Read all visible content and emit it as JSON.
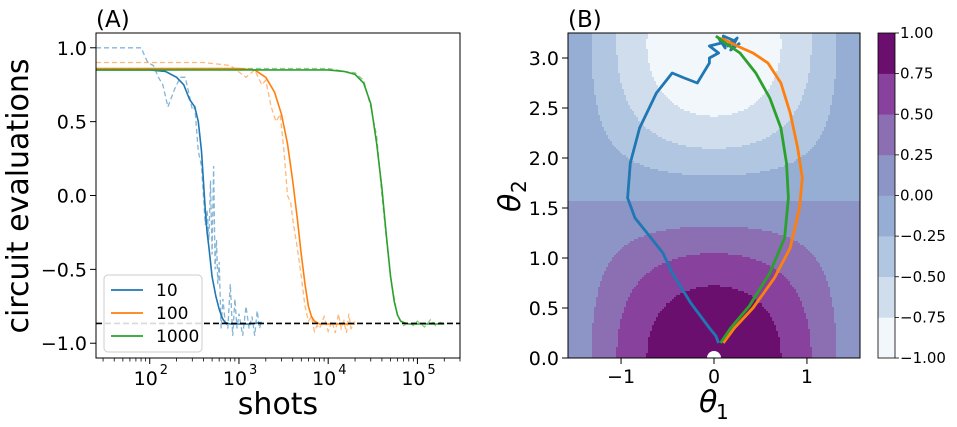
{
  "figure": {
    "panel_a_label": "(A)",
    "panel_b_label": "(B)"
  },
  "chart_data": [
    {
      "type": "line",
      "panel": "(A)",
      "xlabel": "shots",
      "ylabel": "circuit evaluations",
      "xscale": "log",
      "xlim": [
        25,
        300000
      ],
      "ylim": [
        -1.1,
        1.1
      ],
      "xticks": [
        100,
        1000,
        10000,
        100000
      ],
      "xtick_labels": [
        "10",
        "10",
        "10",
        "10"
      ],
      "xtick_exponents": [
        "2",
        "3",
        "4",
        "5"
      ],
      "yticks": [
        -1.0,
        -0.5,
        0.0,
        0.5,
        1.0
      ],
      "ytick_labels": [
        "−1.0",
        "−0.5",
        "0.0",
        "0.5",
        "1.0"
      ],
      "reference_line": {
        "y": -0.866,
        "style": "dashed",
        "color": "#000000"
      },
      "legend": {
        "position": "lower-left"
      },
      "series": [
        {
          "name": "10",
          "color": "#1f77b4",
          "x": [
            25,
            60,
            100,
            150,
            200,
            240,
            280,
            320,
            350,
            380,
            400,
            420,
            440,
            460,
            480,
            500,
            550,
            600,
            650,
            700,
            800,
            1000,
            1300,
            1800
          ],
          "y": [
            0.85,
            0.85,
            0.85,
            0.84,
            0.8,
            0.75,
            0.65,
            0.6,
            0.5,
            0.3,
            0.1,
            -0.1,
            -0.25,
            -0.35,
            -0.45,
            -0.55,
            -0.68,
            -0.77,
            -0.83,
            -0.86,
            -0.87,
            -0.87,
            -0.87,
            -0.86
          ],
          "noisy_x": [
            25,
            60,
            80,
            95,
            110,
            125,
            140,
            160,
            190,
            220,
            250,
            280,
            300,
            320,
            350,
            380,
            400,
            420,
            440,
            460,
            480,
            500,
            520,
            540,
            560,
            580,
            600,
            630,
            660,
            700,
            750,
            800,
            850,
            900,
            950,
            1000,
            1100,
            1200,
            1300,
            1400,
            1500,
            1600,
            1700,
            1800
          ],
          "noisy_y": [
            1.0,
            1.0,
            1.0,
            0.9,
            0.88,
            0.8,
            0.75,
            0.6,
            0.72,
            0.8,
            0.8,
            0.67,
            0.58,
            0.6,
            0.3,
            0.2,
            0.0,
            -0.2,
            -0.1,
            -0.3,
            0.1,
            -0.4,
            0.2,
            -0.5,
            -0.3,
            -0.6,
            -0.45,
            -0.9,
            -0.7,
            -0.85,
            -0.9,
            -0.6,
            -0.95,
            -0.7,
            -0.9,
            -0.8,
            -0.95,
            -0.75,
            -0.9,
            -0.82,
            -0.95,
            -0.78,
            -0.9,
            -0.85
          ]
        },
        {
          "name": "100",
          "color": "#ff7f0e",
          "x": [
            25,
            500,
            1000,
            1500,
            2000,
            2500,
            3000,
            3500,
            4000,
            4500,
            5000,
            5500,
            6000,
            6500,
            7000,
            8000,
            10000,
            13000,
            20000
          ],
          "y": [
            0.86,
            0.86,
            0.86,
            0.85,
            0.8,
            0.7,
            0.55,
            0.35,
            0.1,
            -0.15,
            -0.4,
            -0.6,
            -0.75,
            -0.82,
            -0.85,
            -0.87,
            -0.87,
            -0.87,
            -0.87
          ],
          "noisy_x": [
            25,
            400,
            800,
            1200,
            1500,
            1800,
            2000,
            2300,
            2600,
            2900,
            3200,
            3500,
            3800,
            4100,
            4500,
            5000,
            5500,
            6000,
            6500,
            7000,
            7500,
            8000,
            9000,
            10000,
            11000,
            12000,
            13000,
            14000,
            15000,
            16000,
            17000,
            18000,
            19000,
            20000
          ],
          "noisy_y": [
            0.9,
            0.9,
            0.88,
            0.8,
            0.85,
            0.75,
            0.78,
            0.6,
            0.5,
            0.55,
            0.3,
            0.0,
            -0.05,
            -0.2,
            -0.35,
            -0.55,
            -0.75,
            -0.85,
            -0.82,
            -0.92,
            -0.88,
            -0.9,
            -0.82,
            -0.92,
            -0.85,
            -0.93,
            -0.8,
            -0.9,
            -0.85,
            -0.93,
            -0.8,
            -0.9,
            -0.88,
            -0.85
          ]
        },
        {
          "name": "1000",
          "color": "#2ca02c",
          "x": [
            25,
            2000,
            5000,
            10000,
            15000,
            20000,
            25000,
            30000,
            35000,
            40000,
            45000,
            50000,
            55000,
            60000,
            65000,
            70000,
            80000,
            100000,
            130000,
            200000
          ],
          "y": [
            0.85,
            0.85,
            0.85,
            0.85,
            0.84,
            0.82,
            0.76,
            0.62,
            0.35,
            0.05,
            -0.28,
            -0.55,
            -0.72,
            -0.81,
            -0.85,
            -0.86,
            -0.87,
            -0.87,
            -0.87,
            -0.87
          ],
          "noisy_x": [
            25,
            5000,
            10000,
            15000,
            20000,
            25000,
            30000,
            35000,
            40000,
            45000,
            50000,
            55000,
            60000,
            65000,
            70000,
            80000,
            90000,
            100000,
            120000,
            140000,
            160000,
            180000,
            200000
          ],
          "noisy_y": [
            0.86,
            0.86,
            0.86,
            0.84,
            0.83,
            0.78,
            0.6,
            0.4,
            0.0,
            -0.3,
            -0.55,
            -0.7,
            -0.82,
            -0.85,
            -0.88,
            -0.86,
            -0.88,
            -0.85,
            -0.89,
            -0.84,
            -0.88,
            -0.86,
            -0.87
          ]
        }
      ]
    },
    {
      "type": "heatmap",
      "subtype": "contourf",
      "panel": "(B)",
      "xlabel": "θ",
      "xlabel_sub": "1",
      "ylabel": "θ",
      "ylabel_sub": "2",
      "xlim": [
        -1.5708,
        1.5708
      ],
      "ylim": [
        0.0,
        3.25
      ],
      "xticks": [
        -1,
        0,
        1
      ],
      "xtick_labels": [
        "−1",
        "0",
        "1"
      ],
      "yticks": [
        0.0,
        0.5,
        1.0,
        1.5,
        2.0,
        2.5,
        3.0
      ],
      "ytick_labels": [
        "0.0",
        "0.5",
        "1.0",
        "1.5",
        "2.0",
        "2.5",
        "3.0"
      ],
      "function": "cos(theta1)*cos(theta2)",
      "levels": [
        -1.0,
        -0.75,
        -0.5,
        -0.25,
        0.0,
        0.25,
        0.5,
        0.75,
        1.0
      ],
      "colors": [
        "#f2f7fb",
        "#d0dded",
        "#b1c7e1",
        "#97aed4",
        "#8c95c6",
        "#8b6fb2",
        "#88419d",
        "#6b0f6e"
      ],
      "colorbar_ticks": [
        1.0,
        0.75,
        0.5,
        0.25,
        0.0,
        -0.25,
        -0.5,
        -0.75,
        -1.0
      ],
      "colorbar_labels": [
        "1.00",
        "0.75",
        "0.50",
        "0.25",
        "0.00",
        "−0.25",
        "−0.50",
        "−0.75",
        "−1.00"
      ],
      "start_marker": {
        "x": 0.0,
        "y": 0.0,
        "color": "#ffffff"
      },
      "paths": [
        {
          "name": "10",
          "color": "#1f77b4",
          "x": [
            0.05,
            0.02,
            -0.05,
            -0.25,
            -0.45,
            -0.55,
            -0.72,
            -0.85,
            -0.93,
            -0.9,
            -0.8,
            -0.62,
            -0.45,
            -0.32,
            -0.18,
            -0.05,
            -0.05,
            0.05,
            -0.05,
            0.08,
            0.05,
            0.12,
            0.1,
            0.2,
            0.15,
            0.25,
            0.18,
            0.28
          ],
          "y": [
            0.15,
            0.22,
            0.3,
            0.55,
            0.85,
            1.05,
            1.25,
            1.4,
            1.6,
            1.95,
            2.3,
            2.65,
            2.85,
            2.8,
            2.75,
            2.95,
            3.0,
            3.05,
            3.12,
            3.15,
            3.2,
            3.1,
            3.22,
            3.18,
            3.12,
            3.2,
            3.08,
            3.15
          ]
        },
        {
          "name": "100",
          "color": "#ff7f0e",
          "x": [
            0.1,
            0.22,
            0.42,
            0.65,
            0.82,
            0.92,
            0.95,
            0.9,
            0.82,
            0.72,
            0.58,
            0.42,
            0.25,
            0.12,
            0.05
          ],
          "y": [
            0.15,
            0.3,
            0.5,
            0.8,
            1.1,
            1.5,
            1.8,
            2.1,
            2.45,
            2.75,
            2.95,
            3.05,
            3.12,
            3.18,
            3.2
          ]
        },
        {
          "name": "1000",
          "color": "#2ca02c",
          "x": [
            0.07,
            0.18,
            0.38,
            0.6,
            0.76,
            0.8,
            0.78,
            0.72,
            0.6,
            0.45,
            0.28,
            0.12,
            0.02
          ],
          "y": [
            0.15,
            0.3,
            0.52,
            0.85,
            1.2,
            1.6,
            1.95,
            2.3,
            2.6,
            2.85,
            3.05,
            3.15,
            3.22
          ]
        }
      ]
    }
  ]
}
